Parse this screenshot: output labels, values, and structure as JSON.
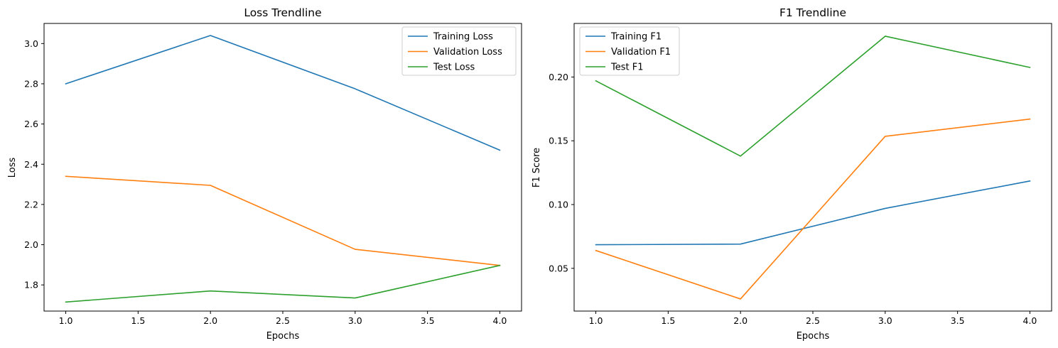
{
  "chart_data": [
    {
      "type": "line",
      "title": "Loss Trendline",
      "xlabel": "Epochs",
      "ylabel": "Loss",
      "x": [
        1,
        2,
        3,
        4
      ],
      "xlim": [
        0.85,
        4.15
      ],
      "ylim": [
        1.67,
        3.1
      ],
      "xticks": [
        1.0,
        1.5,
        2.0,
        2.5,
        3.0,
        3.5,
        4.0
      ],
      "xtick_labels": [
        "1.0",
        "1.5",
        "2.0",
        "2.5",
        "3.0",
        "3.5",
        "4.0"
      ],
      "yticks": [
        1.8,
        2.0,
        2.2,
        2.4,
        2.6,
        2.8,
        3.0
      ],
      "ytick_labels": [
        "1.8",
        "2.0",
        "2.2",
        "2.4",
        "2.6",
        "2.8",
        "3.0"
      ],
      "legend_position": "top-right",
      "grid": false,
      "series": [
        {
          "name": "Training Loss",
          "color": "#1f77b4",
          "values": [
            2.8,
            3.04,
            2.775,
            2.47
          ]
        },
        {
          "name": "Validation Loss",
          "color": "#ff7f0e",
          "values": [
            2.34,
            2.295,
            1.977,
            1.897
          ]
        },
        {
          "name": "Test Loss",
          "color": "#2ca02c",
          "values": [
            1.715,
            1.77,
            1.735,
            1.897
          ]
        }
      ]
    },
    {
      "type": "line",
      "title": "F1 Trendline",
      "xlabel": "Epochs",
      "ylabel": "F1 Score",
      "x": [
        1,
        2,
        3,
        4
      ],
      "xlim": [
        0.85,
        4.15
      ],
      "ylim": [
        0.0165,
        0.242
      ],
      "xticks": [
        1.0,
        1.5,
        2.0,
        2.5,
        3.0,
        3.5,
        4.0
      ],
      "xtick_labels": [
        "1.0",
        "1.5",
        "2.0",
        "2.5",
        "3.0",
        "3.5",
        "4.0"
      ],
      "yticks": [
        0.05,
        0.1,
        0.15,
        0.2
      ],
      "ytick_labels": [
        "0.05",
        "0.10",
        "0.15",
        "0.20"
      ],
      "legend_position": "top-left",
      "grid": false,
      "series": [
        {
          "name": "Training F1",
          "color": "#1f77b4",
          "values": [
            0.0685,
            0.069,
            0.097,
            0.1185
          ]
        },
        {
          "name": "Validation F1",
          "color": "#ff7f0e",
          "values": [
            0.064,
            0.026,
            0.1535,
            0.167
          ]
        },
        {
          "name": "Test F1",
          "color": "#2ca02c",
          "values": [
            0.197,
            0.138,
            0.232,
            0.2075
          ]
        }
      ]
    }
  ]
}
